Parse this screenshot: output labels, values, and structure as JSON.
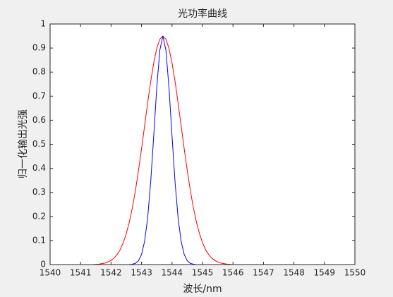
{
  "chart_data": {
    "type": "line",
    "title": "光功率曲线",
    "xlabel": "波长/nm",
    "ylabel": "归一化输出光强",
    "x": [
      1540,
      1541,
      1541.1,
      1541.2,
      1541.3,
      1541.4,
      1541.5,
      1541.6,
      1541.7,
      1541.8,
      1541.9,
      1542,
      1542.1,
      1542.2,
      1542.3,
      1542.4,
      1542.5,
      1542.6,
      1542.7,
      1542.8,
      1542.9,
      1543,
      1543.1,
      1543.2,
      1543.3,
      1543.4,
      1543.5,
      1543.6,
      1543.7,
      1543.8,
      1543.9,
      1544,
      1544.1,
      1544.2,
      1544.3,
      1544.4,
      1544.5,
      1544.6,
      1544.7,
      1544.8,
      1544.9,
      1545,
      1545.1,
      1545.2,
      1545.3,
      1545.4,
      1545.5,
      1545.6,
      1545.7,
      1545.8,
      1545.9,
      1546,
      1546.1,
      1546.2,
      1546.3,
      1546.4,
      1550
    ],
    "series": [
      {
        "color": "#ff0000",
        "values": [
          0,
          0,
          0,
          0,
          0,
          0,
          0.001,
          0.002,
          0.004,
          0.006,
          0.011,
          0.017,
          0.027,
          0.042,
          0.062,
          0.091,
          0.129,
          0.177,
          0.237,
          0.308,
          0.391,
          0.481,
          0.576,
          0.671,
          0.761,
          0.838,
          0.899,
          0.937,
          0.95,
          0.937,
          0.899,
          0.838,
          0.761,
          0.671,
          0.576,
          0.481,
          0.391,
          0.308,
          0.237,
          0.177,
          0.129,
          0.091,
          0.062,
          0.042,
          0.027,
          0.017,
          0.011,
          0.006,
          0.004,
          0.002,
          0.001,
          0,
          0,
          0,
          0,
          0,
          0
        ]
      },
      {
        "color": "#0000ff",
        "values": [
          0,
          0,
          0,
          0,
          0,
          0,
          0,
          0,
          0,
          0,
          0,
          0,
          0,
          0,
          0,
          0,
          0,
          0,
          0.002,
          0.005,
          0.016,
          0.042,
          0.096,
          0.193,
          0.342,
          0.535,
          0.736,
          0.891,
          0.95,
          0.891,
          0.736,
          0.535,
          0.342,
          0.193,
          0.096,
          0.042,
          0.016,
          0.005,
          0.002,
          0,
          0,
          0,
          0,
          0,
          0,
          0,
          0,
          0,
          0,
          0,
          0,
          0,
          0,
          0,
          0,
          0,
          0
        ]
      }
    ],
    "xlim": [
      1540,
      1550
    ],
    "xticks": [
      1540,
      1541,
      1542,
      1543,
      1544,
      1545,
      1546,
      1547,
      1548,
      1549,
      1550
    ],
    "ylim": [
      0,
      1
    ],
    "yticks": [
      0,
      0.1,
      0.2,
      0.3,
      0.4,
      0.5,
      0.6,
      0.7,
      0.8,
      0.9,
      1
    ]
  }
}
